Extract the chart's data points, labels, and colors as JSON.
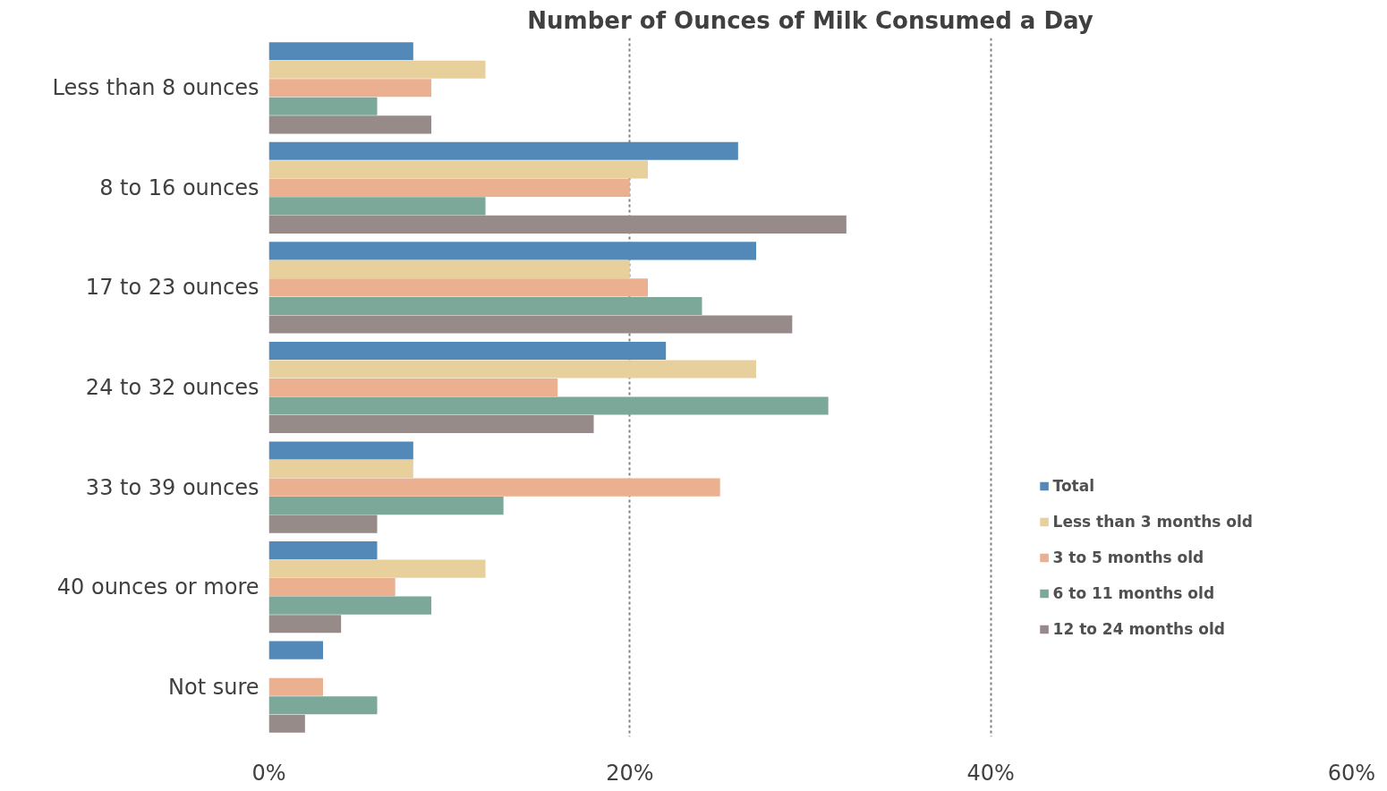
{
  "chart_data": {
    "type": "bar",
    "orientation": "horizontal",
    "title": "Number of Ounces of Milk Consumed a Day",
    "categories": [
      "Less than 8 ounces",
      "8 to 16 ounces",
      "17 to 23 ounces",
      "24 to 32 ounces",
      "33 to 39 ounces",
      "40 ounces or more",
      "Not sure"
    ],
    "series": [
      {
        "name": "Total",
        "color": "#5389b9",
        "values": [
          8,
          26,
          27,
          22,
          8,
          6,
          3
        ]
      },
      {
        "name": "Less than 3 months old",
        "color": "#e8d09d",
        "values": [
          12,
          21,
          20,
          27,
          8,
          12,
          null
        ]
      },
      {
        "name": "3 to 5 months old",
        "color": "#ebb08f",
        "values": [
          9,
          20,
          21,
          16,
          25,
          7,
          3
        ]
      },
      {
        "name": "6 to 11 months old",
        "color": "#7ba898",
        "values": [
          6,
          12,
          24,
          31,
          13,
          9,
          6
        ]
      },
      {
        "name": "12 to 24 months old",
        "color": "#968b89",
        "values": [
          9,
          32,
          29,
          18,
          6,
          4,
          2
        ]
      }
    ],
    "xlim": [
      0,
      60
    ],
    "xticks": [
      {
        "value": 0,
        "label": "0%"
      },
      {
        "value": 20,
        "label": "20%"
      },
      {
        "value": 40,
        "label": "40%"
      },
      {
        "value": 60,
        "label": "60%"
      }
    ],
    "grid": "x",
    "legend": "bottom right"
  }
}
